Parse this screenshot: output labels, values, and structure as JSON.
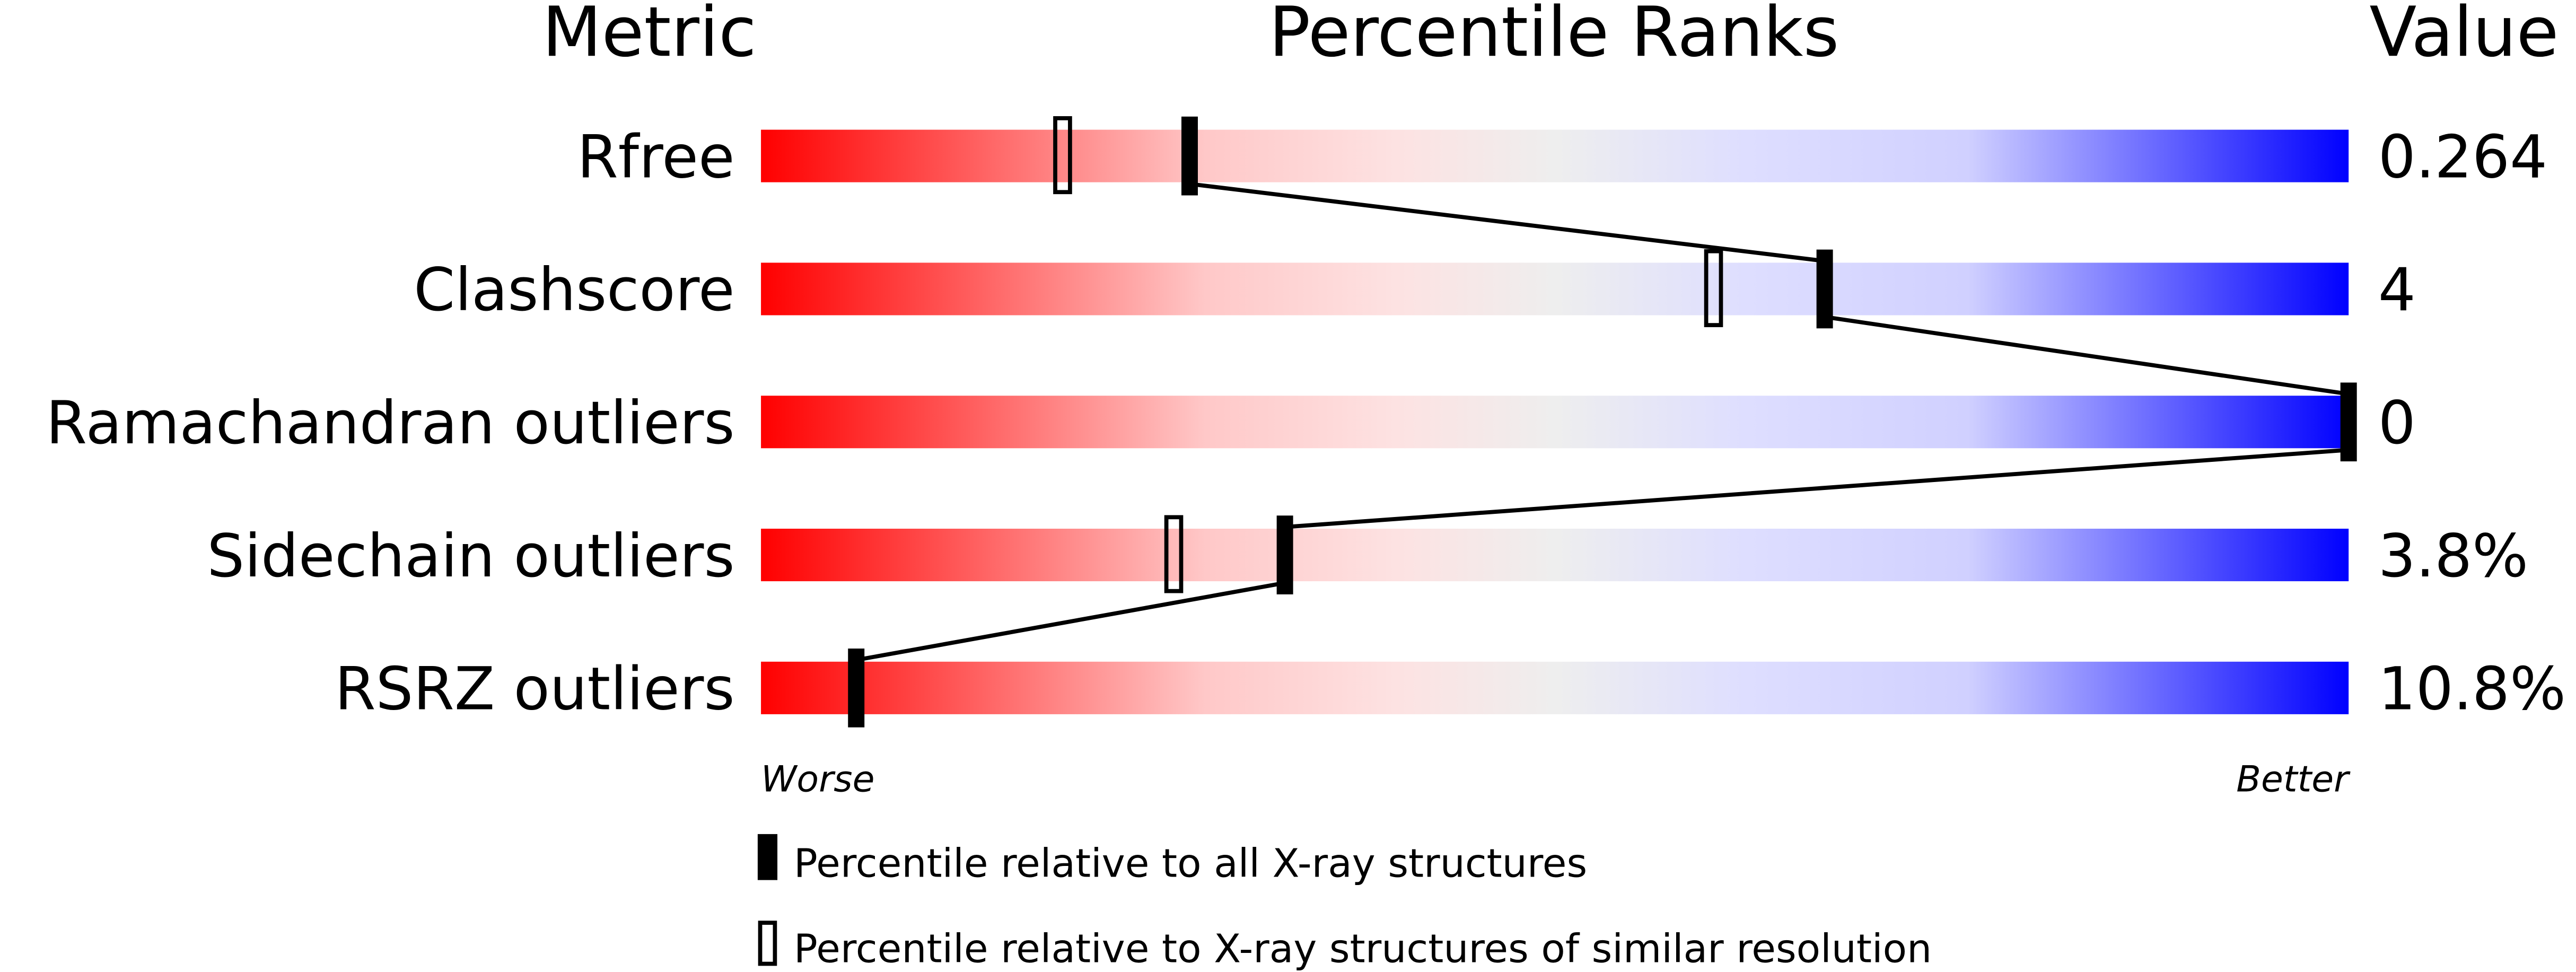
{
  "chart_data": {
    "type": "percentile-bar",
    "headers": {
      "metric": "Metric",
      "ranks": "Percentile Ranks",
      "value": "Value"
    },
    "xlim": [
      0,
      100
    ],
    "scale_left_label": "Worse",
    "scale_right_label": "Better",
    "gradient_colors": {
      "worse": "#ff0000",
      "middle": "#eeeeee",
      "better": "#0000ff"
    },
    "metrics": [
      {
        "name": "Rfree",
        "value": "0.264",
        "percentile_all": 27,
        "percentile_similar": 19
      },
      {
        "name": "Clashscore",
        "value": "4",
        "percentile_all": 67,
        "percentile_similar": 60
      },
      {
        "name": "Ramachandran outliers",
        "value": "0",
        "percentile_all": 100,
        "percentile_similar": null
      },
      {
        "name": "Sidechain outliers",
        "value": "3.8%",
        "percentile_all": 33,
        "percentile_similar": 26
      },
      {
        "name": "RSRZ outliers",
        "value": "10.8%",
        "percentile_all": 6,
        "percentile_similar": null
      }
    ],
    "legend": [
      {
        "marker": "filled",
        "label": "Percentile relative to all X-ray structures"
      },
      {
        "marker": "open",
        "label": "Percentile relative to X-ray structures of similar resolution"
      }
    ]
  }
}
